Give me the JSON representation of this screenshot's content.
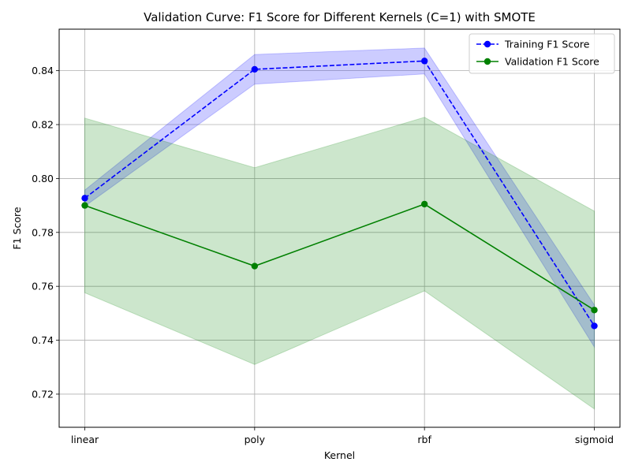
{
  "chart_data": {
    "type": "line",
    "title": "Validation Curve: F1 Score for Different Kernels (C=1) with SMOTE",
    "xlabel": "Kernel",
    "ylabel": "F1 Score",
    "categories": [
      "linear",
      "poly",
      "rbf",
      "sigmoid"
    ],
    "ylim": [
      0.7077,
      0.8554
    ],
    "yticks": [
      0.72,
      0.74,
      0.76,
      0.78,
      0.8,
      0.82,
      0.84
    ],
    "ytick_labels": [
      "0.72",
      "0.74",
      "0.76",
      "0.78",
      "0.80",
      "0.82",
      "0.84"
    ],
    "grid": true,
    "legend_position": "top-right",
    "series": [
      {
        "name": "Training F1 Score",
        "values": [
          0.7927,
          0.8405,
          0.8436,
          0.7453
        ],
        "band_lower": [
          0.7897,
          0.835,
          0.8388,
          0.7375
        ],
        "band_upper": [
          0.7957,
          0.846,
          0.8484,
          0.7531
        ],
        "color": "#0000ff",
        "band_color": "#0000ff",
        "linestyle": "dashed",
        "marker": "circle"
      },
      {
        "name": "Validation F1 Score",
        "values": [
          0.79,
          0.7675,
          0.7905,
          0.7512
        ],
        "band_lower": [
          0.7576,
          0.731,
          0.7583,
          0.7145
        ],
        "band_upper": [
          0.8224,
          0.804,
          0.8227,
          0.7879
        ],
        "color": "#008000",
        "band_color": "#008000",
        "linestyle": "solid",
        "marker": "circle"
      }
    ]
  }
}
